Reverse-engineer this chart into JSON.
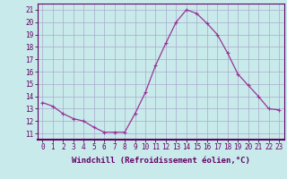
{
  "hours": [
    0,
    1,
    2,
    3,
    4,
    5,
    6,
    7,
    8,
    9,
    10,
    11,
    12,
    13,
    14,
    15,
    16,
    17,
    18,
    19,
    20,
    21,
    22,
    23
  ],
  "values": [
    13.5,
    13.2,
    12.6,
    12.2,
    12.0,
    11.5,
    11.1,
    11.1,
    11.1,
    12.6,
    14.3,
    16.5,
    18.3,
    20.0,
    21.0,
    20.7,
    19.9,
    19.0,
    17.5,
    15.8,
    14.9,
    14.0,
    13.0,
    12.9
  ],
  "line_color": "#993399",
  "marker": "+",
  "markersize": 3,
  "linewidth": 0.9,
  "bg_color": "#c8eaea",
  "grid_color": "#aaaacc",
  "xlabel": "Windchill (Refroidissement éolien,°C)",
  "xlabel_fontsize": 6.5,
  "ylabel_ticks": [
    11,
    12,
    13,
    14,
    15,
    16,
    17,
    18,
    19,
    20,
    21
  ],
  "xlim": [
    -0.5,
    23.5
  ],
  "ylim": [
    10.5,
    21.5
  ],
  "tick_fontsize": 5.5,
  "axis_label_color": "#660066"
}
